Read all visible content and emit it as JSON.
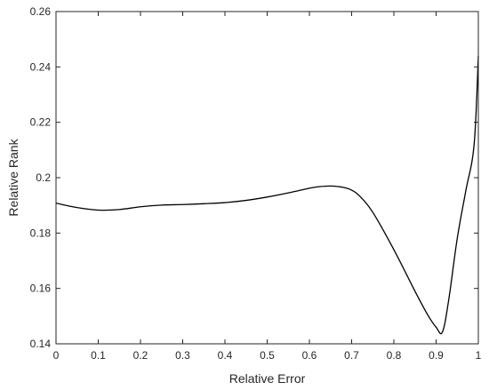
{
  "chart_data": {
    "type": "line",
    "title": "",
    "xlabel": "Relative Error",
    "ylabel": "Relative Rank",
    "xlim": [
      0,
      1
    ],
    "ylim": [
      0.14,
      0.26
    ],
    "xticks": [
      "0",
      "0.1",
      "0.2",
      "0.3",
      "0.4",
      "0.5",
      "0.6",
      "0.7",
      "0.8",
      "0.9",
      "1"
    ],
    "yticks": [
      "0.14",
      "0.16",
      "0.18",
      "0.2",
      "0.22",
      "0.24",
      "0.26"
    ],
    "grid": false,
    "legend": "none",
    "line_color": "#000000",
    "series": [
      {
        "x": [
          0,
          0.05,
          0.1,
          0.15,
          0.2,
          0.25,
          0.3,
          0.35,
          0.4,
          0.45,
          0.5,
          0.55,
          0.6,
          0.62,
          0.65,
          0.68,
          0.7,
          0.72,
          0.75,
          0.8,
          0.85,
          0.88,
          0.9,
          0.915,
          0.93,
          0.95,
          0.97,
          0.99,
          1.0
        ],
        "y": [
          0.1908,
          0.1892,
          0.1883,
          0.1885,
          0.1895,
          0.1901,
          0.1903,
          0.1906,
          0.191,
          0.1918,
          0.193,
          0.1945,
          0.1962,
          0.1967,
          0.197,
          0.1965,
          0.1955,
          0.1932,
          0.1875,
          0.174,
          0.159,
          0.1505,
          0.146,
          0.1443,
          0.156,
          0.178,
          0.195,
          0.212,
          0.244
        ]
      }
    ]
  }
}
